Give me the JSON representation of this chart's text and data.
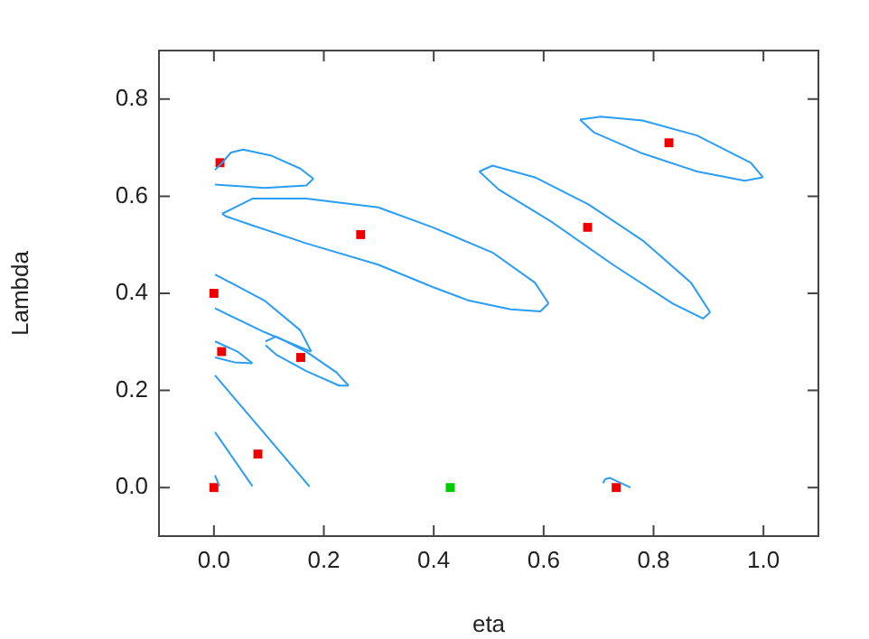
{
  "chart_data": {
    "type": "scatter",
    "xlabel": "eta",
    "ylabel": "Lambda",
    "xlim": [
      -0.1,
      1.1
    ],
    "ylim": [
      -0.1,
      0.9
    ],
    "xticks": [
      {
        "value": 0,
        "label": "0.0"
      },
      {
        "value": 0.2,
        "label": "0.2"
      },
      {
        "value": 0.4,
        "label": "0.4"
      },
      {
        "value": 0.6,
        "label": "0.6"
      },
      {
        "value": 0.8,
        "label": "0.8"
      },
      {
        "value": 1,
        "label": "1.0"
      }
    ],
    "yticks": [
      {
        "value": 0,
        "label": "0.0"
      },
      {
        "value": 0.2,
        "label": "0.2"
      },
      {
        "value": 0.4,
        "label": "0.4"
      },
      {
        "value": 0.6,
        "label": "0.6"
      },
      {
        "value": 0.8,
        "label": "0.8"
      }
    ],
    "grid": false,
    "legend": false,
    "series": [
      {
        "type": "line",
        "marker": "none",
        "color": "#2a9df4",
        "x": [
          0.002,
          0.015,
          0.031,
          0.053,
          0.103,
          0.157,
          0.181
        ],
        "values": [
          0.654,
          0.669,
          0.69,
          0.696,
          0.684,
          0.657,
          0.636
        ]
      },
      {
        "type": "line",
        "marker": "none",
        "color": "#2a9df4",
        "x": [
          0.002,
          0.092,
          0.168,
          0.181
        ],
        "values": [
          0.624,
          0.617,
          0.622,
          0.636
        ]
      },
      {
        "type": "line",
        "marker": "none",
        "color": "#2a9df4",
        "x": [
          0.015,
          0.07,
          0.168,
          0.299,
          0.398,
          0.507,
          0.584,
          0.609
        ],
        "values": [
          0.564,
          0.595,
          0.595,
          0.577,
          0.536,
          0.484,
          0.422,
          0.379
        ]
      },
      {
        "type": "line",
        "marker": "none",
        "color": "#2a9df4",
        "x": [
          0.015,
          0.021,
          0.07,
          0.168,
          0.299,
          0.398,
          0.464,
          0.54,
          0.594,
          0.609
        ],
        "values": [
          0.564,
          0.559,
          0.54,
          0.503,
          0.459,
          0.413,
          0.385,
          0.367,
          0.363,
          0.379
        ]
      },
      {
        "type": "line",
        "marker": "none",
        "color": "#2a9df4",
        "x": [
          0.483,
          0.507,
          0.584,
          0.682,
          0.78,
          0.868,
          0.903
        ],
        "values": [
          0.651,
          0.663,
          0.639,
          0.583,
          0.509,
          0.422,
          0.361
        ]
      },
      {
        "type": "line",
        "marker": "none",
        "color": "#2a9df4",
        "x": [
          0.483,
          0.518,
          0.616,
          0.726,
          0.835,
          0.89,
          0.903
        ],
        "values": [
          0.651,
          0.614,
          0.546,
          0.459,
          0.379,
          0.348,
          0.361
        ]
      },
      {
        "type": "line",
        "marker": "none",
        "color": "#2a9df4",
        "x": [
          0.666,
          0.704,
          0.78,
          0.879,
          0.977,
          0.999
        ],
        "values": [
          0.758,
          0.764,
          0.756,
          0.725,
          0.669,
          0.639
        ]
      },
      {
        "type": "line",
        "marker": "none",
        "color": "#2a9df4",
        "x": [
          0.666,
          0.692,
          0.78,
          0.879,
          0.966,
          0.999
        ],
        "values": [
          0.758,
          0.731,
          0.688,
          0.651,
          0.632,
          0.639
        ]
      },
      {
        "type": "line",
        "marker": "none",
        "color": "#2a9df4",
        "x": [
          0.002,
          0.092,
          0.157,
          0.177
        ],
        "values": [
          0.439,
          0.385,
          0.324,
          0.28
        ]
      },
      {
        "type": "line",
        "marker": "none",
        "color": "#2a9df4",
        "x": [
          0.002,
          0.092,
          0.177
        ],
        "values": [
          0.369,
          0.32,
          0.28
        ]
      },
      {
        "type": "line",
        "marker": "none",
        "color": "#2a9df4",
        "x": [
          0.094,
          0.113,
          0.168,
          0.223,
          0.245
        ],
        "values": [
          0.301,
          0.311,
          0.28,
          0.237,
          0.21
        ]
      },
      {
        "type": "line",
        "marker": "none",
        "color": "#2a9df4",
        "x": [
          0.094,
          0.113,
          0.168,
          0.228,
          0.245
        ],
        "values": [
          0.293,
          0.274,
          0.24,
          0.21,
          0.21
        ]
      },
      {
        "type": "line",
        "marker": "none",
        "color": "#2a9df4",
        "x": [
          0.002,
          0.043,
          0.07
        ],
        "values": [
          0.301,
          0.28,
          0.256
        ]
      },
      {
        "type": "line",
        "marker": "none",
        "color": "#2a9df4",
        "x": [
          0.002,
          0.037,
          0.07
        ],
        "values": [
          0.268,
          0.258,
          0.256
        ]
      },
      {
        "type": "line",
        "marker": "none",
        "color": "#2a9df4",
        "x": [
          0.002,
          0.081,
          0.174
        ],
        "values": [
          0.231,
          0.126,
          0.002
        ]
      },
      {
        "type": "line",
        "marker": "none",
        "color": "#2a9df4",
        "x": [
          0.002,
          0.07
        ],
        "values": [
          0.114,
          0.003
        ]
      },
      {
        "type": "line",
        "marker": "none",
        "color": "#2a9df4",
        "x": [
          0.002,
          0.01
        ],
        "values": [
          0.025,
          0.003
        ]
      },
      {
        "type": "line",
        "marker": "none",
        "color": "#2a9df4",
        "x": [
          0.708,
          0.712,
          0.72,
          0.758
        ],
        "values": [
          0.009,
          0.017,
          0.02,
          0.0
        ]
      },
      {
        "type": "scatter",
        "marker": "square",
        "color": "#ee0000",
        "x": [
          0.011,
          0.0,
          0.014,
          0.158,
          0.08,
          0.0,
          0.267,
          0.68,
          0.828,
          0.732
        ],
        "values": [
          0.669,
          0.4,
          0.28,
          0.268,
          0.069,
          0.0,
          0.521,
          0.536,
          0.71,
          0.0
        ]
      },
      {
        "type": "scatter",
        "marker": "square",
        "color": "#00cc00",
        "x": [
          0.43
        ],
        "values": [
          0.0
        ]
      }
    ]
  }
}
